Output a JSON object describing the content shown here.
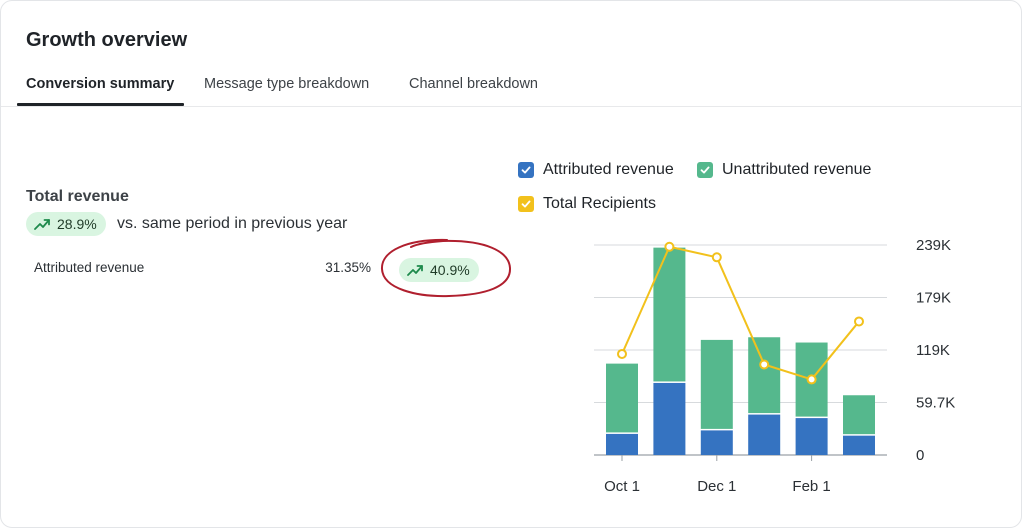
{
  "header": {
    "title": "Growth overview"
  },
  "tabs": [
    {
      "label": "Conversion summary",
      "active": true
    },
    {
      "label": "Message type breakdown",
      "active": false
    },
    {
      "label": "Channel breakdown",
      "active": false
    }
  ],
  "summary": {
    "total_label": "Total revenue",
    "total_change": "28.9%",
    "compare_text": "vs. same period in previous year",
    "rows": [
      {
        "label": "Attributed revenue",
        "share": "31.35%",
        "change": "40.9%"
      }
    ],
    "trend_icon": "trending-up-icon",
    "badge_color": "#d9f5e1",
    "annotation_color": "#b01f2e"
  },
  "legend": [
    {
      "label": "Attributed revenue",
      "color": "#3573c1"
    },
    {
      "label": "Unattributed revenue",
      "color": "#55b88d"
    },
    {
      "label": "Total Recipients",
      "color": "#f2c11c"
    }
  ],
  "chart_data": {
    "type": "bar",
    "stacked": true,
    "x_tick_labels": [
      "Oct 1",
      "Dec 1",
      "Feb 1"
    ],
    "x_tick_bar_index": [
      0,
      2,
      4
    ],
    "y_ticks": [
      "0",
      "59.7K",
      "119K",
      "179K",
      "239K"
    ],
    "ylim": [
      0,
      239000
    ],
    "grid": true,
    "series": [
      {
        "name": "Attributed revenue",
        "kind": "bar",
        "color": "#3573c1",
        "values": [
          24000,
          82000,
          28000,
          46000,
          42000,
          22000
        ]
      },
      {
        "name": "Unattributed revenue",
        "kind": "bar",
        "color": "#55b88d",
        "values": [
          80000,
          154000,
          103000,
          88000,
          86000,
          46000
        ]
      },
      {
        "name": "Total Recipients",
        "kind": "line",
        "color": "#f2c11c",
        "values": [
          115000,
          237000,
          225000,
          103000,
          86000,
          152000
        ]
      }
    ]
  }
}
